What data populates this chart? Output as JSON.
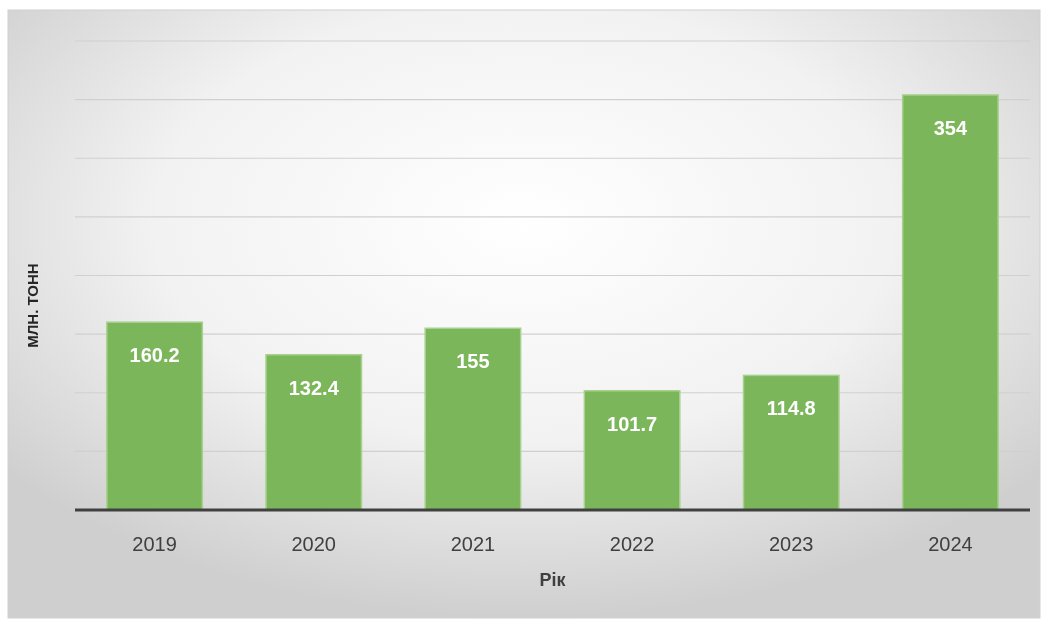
{
  "chart_data": {
    "type": "bar",
    "xlabel": "Рік",
    "ylabel": "МЛН. ТОНН",
    "categories": [
      "2019",
      "2020",
      "2021",
      "2022",
      "2023",
      "2024"
    ],
    "values": [
      160.2,
      132.4,
      155,
      101.7,
      114.8,
      354
    ],
    "color": "#7cb65a",
    "ylim": [
      0,
      400
    ],
    "yticks": [
      {
        "value": 0,
        "label": null
      },
      {
        "value": 50,
        "label": null
      },
      {
        "value": 100,
        "label": null
      },
      {
        "value": 150,
        "label": null
      },
      {
        "value": 200,
        "label": null
      },
      {
        "value": 250,
        "label": null
      },
      {
        "value": 300,
        "label": null
      },
      {
        "value": 350,
        "label": null
      },
      {
        "value": 400,
        "label": null
      }
    ],
    "grid": "y",
    "tick_labels": "x",
    "data_labels": true
  }
}
